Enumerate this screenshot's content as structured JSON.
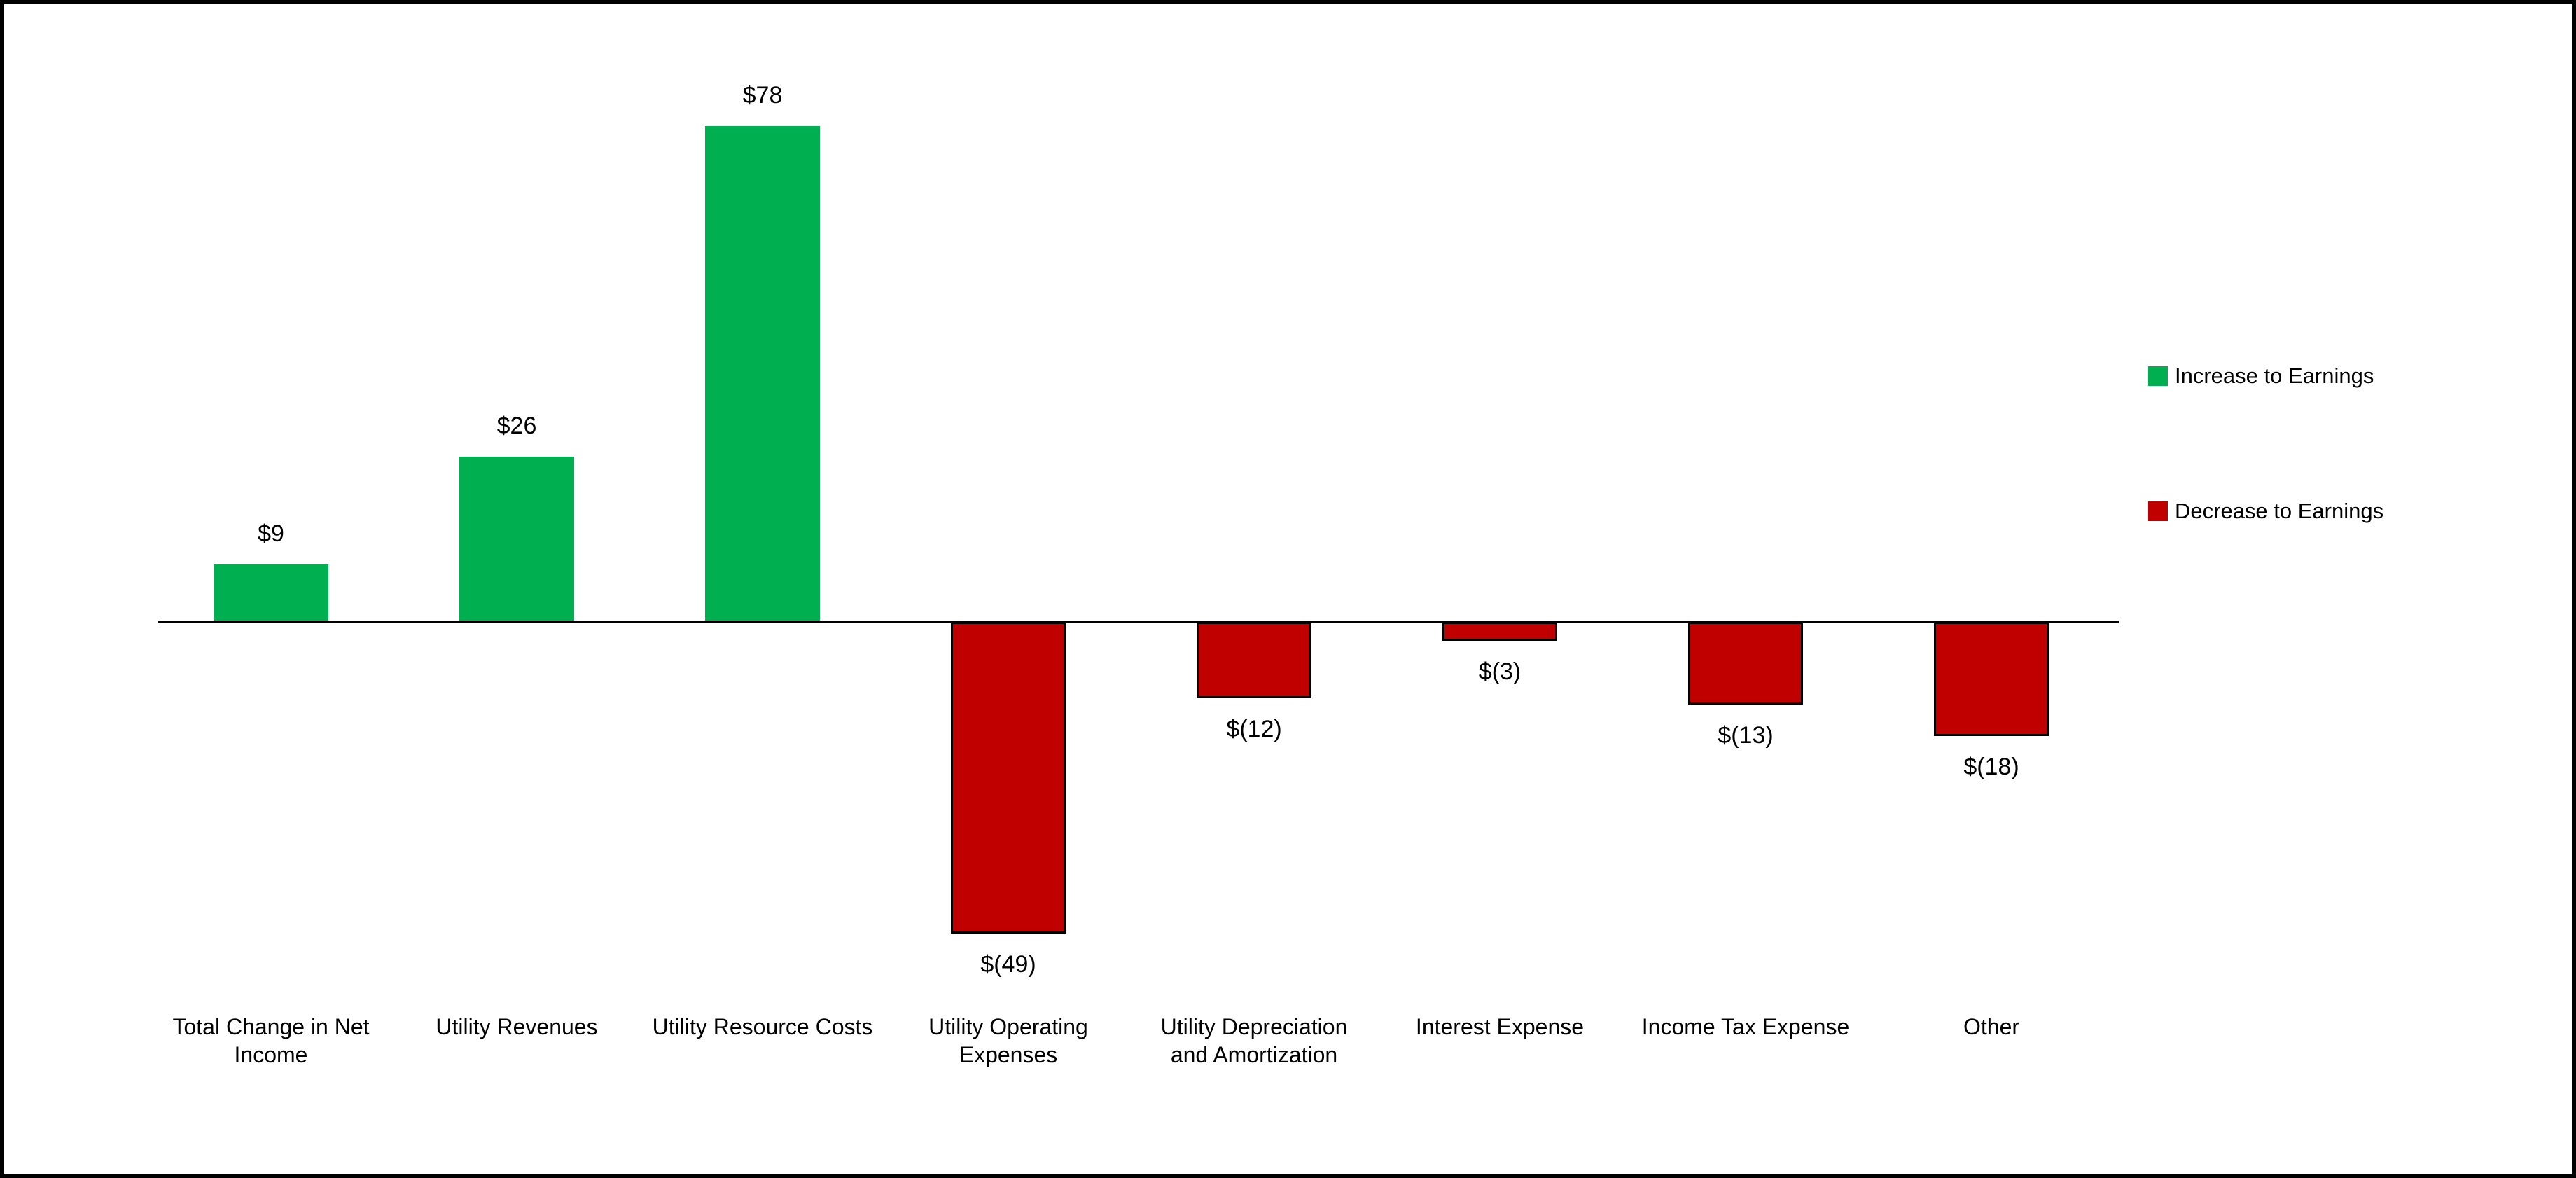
{
  "chart_data": {
    "type": "bar",
    "title": "",
    "xlabel": "",
    "ylabel": "",
    "categories": [
      "Total Change in Net Income",
      "Utility Revenues",
      "Utility Resource Costs",
      "Utility Operating Expenses",
      "Utility Depreciation and Amortization",
      "Interest Expense",
      "Income Tax Expense",
      "Other"
    ],
    "values": [
      9,
      26,
      78,
      -49,
      -12,
      -3,
      -13,
      -18
    ],
    "data_labels": [
      "$9",
      "$26",
      "$78",
      "$(49)",
      "$(12)",
      "$(3)",
      "$(13)",
      "$(18)"
    ],
    "ylim": [
      -55,
      85
    ],
    "grid": false,
    "y_axis_visible": false,
    "baseline_value": 0,
    "colors": {
      "increase": "#00B050",
      "decrease": "#C00000",
      "decrease_border": "#000000",
      "axis": "#000000"
    },
    "legend": {
      "position": "right",
      "entries": [
        {
          "label": "Increase to Earnings",
          "color": "#00B050"
        },
        {
          "label": "Decrease to Earnings",
          "color": "#C00000"
        }
      ]
    }
  }
}
